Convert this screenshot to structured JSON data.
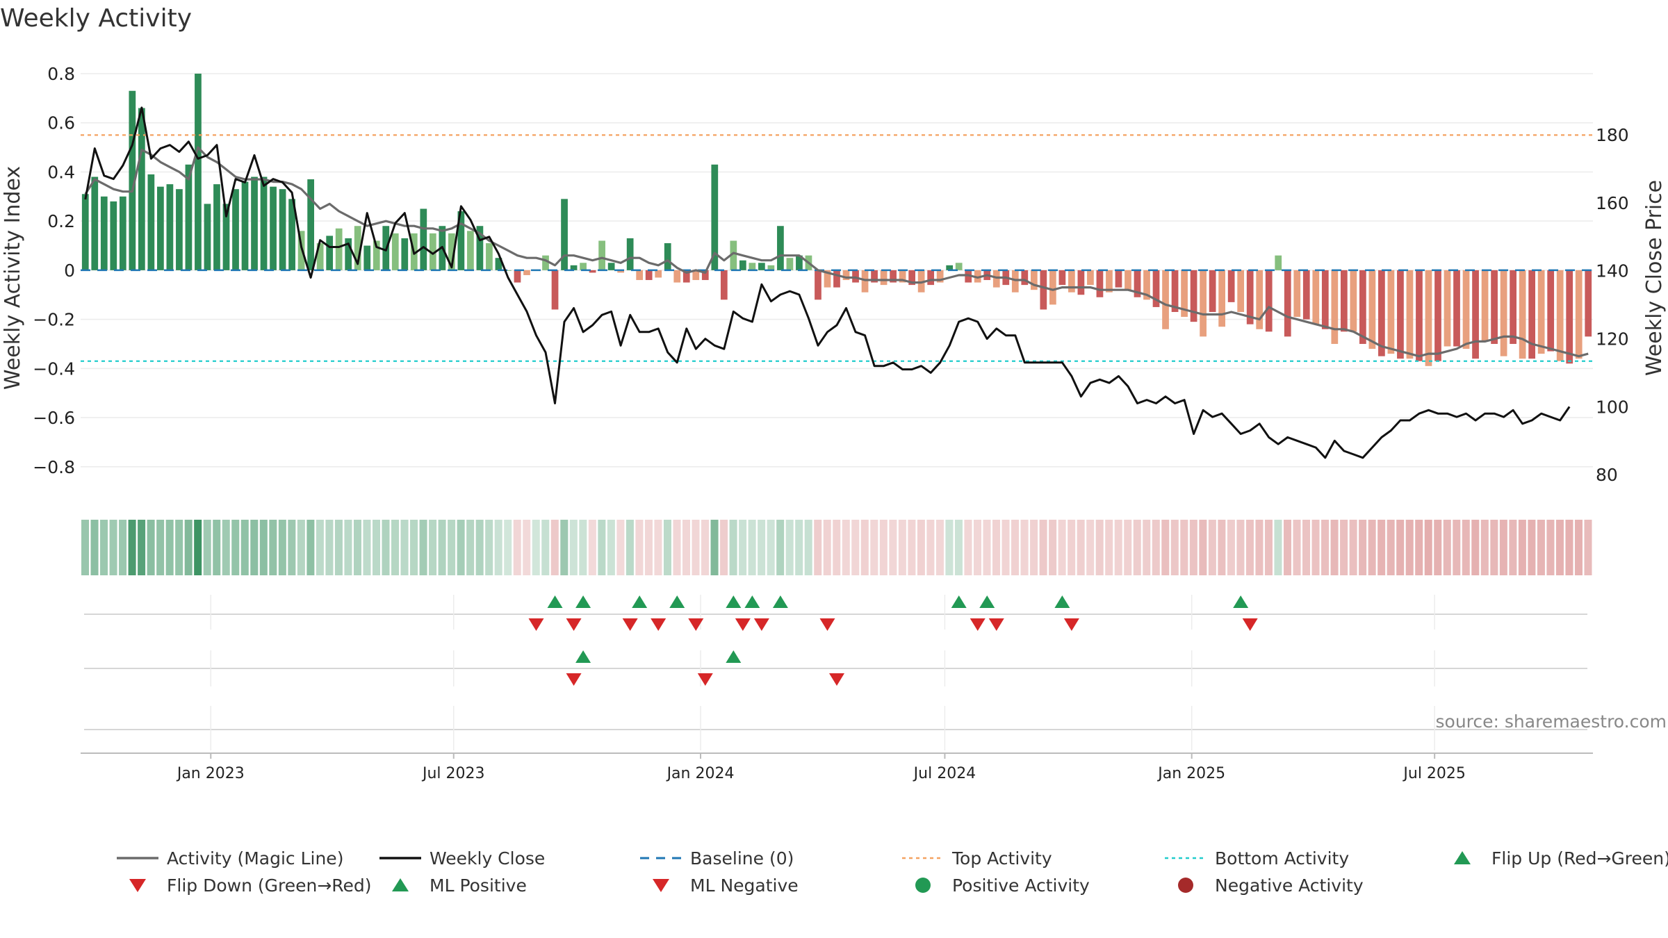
{
  "title": "Weekly Activity",
  "source": "source: sharemaestro.com",
  "colors": {
    "strong_green": "#2e8b57",
    "light_green": "#86bf7e",
    "strong_red": "#c85a5a",
    "light_red": "#e8a07e",
    "magic_line": "#6b6b6b",
    "close_line": "#111111",
    "baseline": "#1f77b4",
    "top_line": "#f4a261",
    "bottom_line": "#22cccc",
    "marker_green": "#229954",
    "marker_red": "#d62728",
    "dot_red": "#a52a2a"
  },
  "chart_data": {
    "type": "bar+line",
    "title": "Weekly Activity",
    "ylabel_left": "Weekly Activity Index",
    "ylabel_right": "Weekly Close Price",
    "ylim_left": [
      -0.86,
      0.8
    ],
    "yticks_left": [
      {
        "v": 0.8,
        "label": "0.8"
      },
      {
        "v": 0.6,
        "label": "0.6"
      },
      {
        "v": 0.4,
        "label": "0.4"
      },
      {
        "v": 0.2,
        "label": "0.2"
      },
      {
        "v": 0,
        "label": "0"
      },
      {
        "v": -0.2,
        "label": "−0.2"
      },
      {
        "v": -0.4,
        "label": "−0.4"
      },
      {
        "v": -0.6,
        "label": "−0.6"
      },
      {
        "v": -0.8,
        "label": "−0.8"
      }
    ],
    "ylim_right": [
      78,
      198
    ],
    "yticks_right": [
      {
        "v": 180,
        "label": "180"
      },
      {
        "v": 160,
        "label": "160"
      },
      {
        "v": 140,
        "label": "140"
      },
      {
        "v": 120,
        "label": "120"
      },
      {
        "v": 100,
        "label": "100"
      },
      {
        "v": 80,
        "label": "80"
      }
    ],
    "x_start": "2022-09-26",
    "x_end": "2025-10-27",
    "xticks": [
      {
        "date": "2023-01-01",
        "label": "Jan 2023"
      },
      {
        "date": "2023-07-01",
        "label": "Jul 2023"
      },
      {
        "date": "2024-01-01",
        "label": "Jan 2024"
      },
      {
        "date": "2024-07-01",
        "label": "Jul 2024"
      },
      {
        "date": "2025-01-01",
        "label": "Jan 2025"
      },
      {
        "date": "2025-07-01",
        "label": "Jul 2025"
      }
    ],
    "top_activity": 0.55,
    "bottom_activity": -0.37,
    "baseline": 0,
    "weekly_activity": [
      0.31,
      0.38,
      0.3,
      0.28,
      0.3,
      0.73,
      0.66,
      0.39,
      0.34,
      0.35,
      0.33,
      0.43,
      0.8,
      0.27,
      0.35,
      0.27,
      0.33,
      0.36,
      0.38,
      0.38,
      0.34,
      0.33,
      0.29,
      0.16,
      0.37,
      0.11,
      0.14,
      0.17,
      0.13,
      0.18,
      0.1,
      0.12,
      0.18,
      0.15,
      0.13,
      0.15,
      0.25,
      0.15,
      0.18,
      0.15,
      0.24,
      0.16,
      0.18,
      0.11,
      0.05,
      0,
      -0.05,
      -0.02,
      0,
      0.06,
      -0.16,
      0.29,
      0.02,
      0.03,
      -0.01,
      0.12,
      0.03,
      -0.01,
      0.13,
      -0.04,
      -0.04,
      -0.03,
      0.11,
      -0.05,
      -0.05,
      -0.04,
      -0.04,
      0.43,
      -0.12,
      0.12,
      0.04,
      0.03,
      0.03,
      0.02,
      0.18,
      0.05,
      0.06,
      0.06,
      -0.12,
      -0.07,
      -0.07,
      -0.04,
      -0.05,
      -0.09,
      -0.05,
      -0.06,
      -0.05,
      -0.05,
      -0.06,
      -0.09,
      -0.06,
      -0.05,
      0.02,
      0.03,
      -0.05,
      -0.05,
      -0.04,
      -0.07,
      -0.06,
      -0.09,
      -0.06,
      -0.08,
      -0.16,
      -0.14,
      -0.06,
      -0.09,
      -0.1,
      -0.06,
      -0.11,
      -0.09,
      -0.07,
      -0.08,
      -0.11,
      -0.12,
      -0.15,
      -0.24,
      -0.17,
      -0.19,
      -0.21,
      -0.27,
      -0.17,
      -0.23,
      -0.13,
      -0.17,
      -0.22,
      -0.24,
      -0.25,
      0.06,
      -0.27,
      -0.19,
      -0.2,
      -0.22,
      -0.24,
      -0.3,
      -0.25,
      -0.25,
      -0.3,
      -0.32,
      -0.35,
      -0.34,
      -0.36,
      -0.36,
      -0.37,
      -0.39,
      -0.37,
      -0.31,
      -0.31,
      -0.32,
      -0.36,
      -0.29,
      -0.3,
      -0.35,
      -0.3,
      -0.36,
      -0.36,
      -0.34,
      -0.33,
      -0.37,
      -0.38,
      -0.36,
      -0.27
    ],
    "magic_line": [
      0.31,
      0.37,
      0.35,
      0.33,
      0.32,
      0.32,
      0.49,
      0.47,
      0.44,
      0.42,
      0.4,
      0.37,
      0.5,
      0.46,
      0.44,
      0.41,
      0.38,
      0.37,
      0.37,
      0.37,
      0.36,
      0.36,
      0.35,
      0.33,
      0.29,
      0.25,
      0.27,
      0.24,
      0.22,
      0.2,
      0.18,
      0.19,
      0.2,
      0.19,
      0.18,
      0.18,
      0.17,
      0.17,
      0.16,
      0.17,
      0.19,
      0.17,
      0.15,
      0.12,
      0.1,
      0.08,
      0.06,
      0.05,
      0.05,
      0.04,
      0.02,
      0.06,
      0.06,
      0.05,
      0.04,
      0.05,
      0.04,
      0.03,
      0.05,
      0.05,
      0.03,
      0.02,
      0.04,
      0.01,
      -0.01,
      0,
      -0.01,
      0.07,
      0.04,
      0.07,
      0.06,
      0.05,
      0.04,
      0.04,
      0.06,
      0.06,
      0.06,
      0.03,
      0,
      -0.01,
      -0.02,
      -0.03,
      -0.03,
      -0.04,
      -0.04,
      -0.04,
      -0.04,
      -0.04,
      -0.05,
      -0.05,
      -0.04,
      -0.04,
      -0.03,
      -0.02,
      -0.02,
      -0.03,
      -0.02,
      -0.03,
      -0.03,
      -0.04,
      -0.04,
      -0.06,
      -0.07,
      -0.08,
      -0.07,
      -0.07,
      -0.07,
      -0.07,
      -0.08,
      -0.08,
      -0.08,
      -0.08,
      -0.09,
      -0.1,
      -0.12,
      -0.14,
      -0.15,
      -0.16,
      -0.17,
      -0.18,
      -0.18,
      -0.18,
      -0.17,
      -0.18,
      -0.19,
      -0.2,
      -0.15,
      -0.17,
      -0.19,
      -0.2,
      -0.21,
      -0.22,
      -0.23,
      -0.24,
      -0.24,
      -0.25,
      -0.27,
      -0.29,
      -0.31,
      -0.32,
      -0.33,
      -0.34,
      -0.35,
      -0.34,
      -0.34,
      -0.33,
      -0.32,
      -0.3,
      -0.29,
      -0.29,
      -0.28,
      -0.27,
      -0.27,
      -0.28,
      -0.3,
      -0.31,
      -0.32,
      -0.33,
      -0.34,
      -0.35,
      -0.34
    ],
    "weekly_close": [
      161,
      176,
      168,
      167,
      171,
      177,
      188,
      173,
      176,
      177,
      175,
      178,
      173,
      174,
      177,
      156,
      167,
      166,
      174,
      165,
      167,
      166,
      163,
      147,
      138,
      149,
      147,
      147,
      148,
      142,
      157,
      147,
      146,
      154,
      157,
      145,
      147,
      145,
      147,
      141,
      159,
      155,
      149,
      150,
      145,
      138,
      133,
      128,
      121,
      116,
      101,
      125,
      129,
      122,
      124,
      127,
      128,
      118,
      127,
      122,
      122,
      123,
      116,
      113,
      123,
      117,
      120,
      118,
      117,
      128,
      126,
      125,
      136,
      131,
      133,
      134,
      133,
      126,
      118,
      122,
      124,
      129,
      122,
      121,
      112,
      112,
      113,
      111,
      111,
      112,
      110,
      113,
      118,
      125,
      126,
      125,
      120,
      123,
      121,
      121,
      113,
      113,
      113,
      113,
      113,
      109,
      103,
      107,
      108,
      107,
      109,
      106,
      101,
      102,
      101,
      103,
      101,
      102,
      92,
      99,
      97,
      98,
      95,
      92,
      93,
      95,
      91,
      89,
      91,
      90,
      89,
      88,
      85,
      90,
      87,
      86,
      85,
      88,
      91,
      93,
      96,
      96,
      98,
      99,
      98,
      98,
      97,
      98,
      96,
      98,
      98,
      97,
      99,
      95,
      96,
      98,
      97,
      96,
      100
    ],
    "strip_shading_note": "strip cell color follows weekly_activity sign and magnitude",
    "flip_up_weeks": [
      50,
      53,
      59,
      63,
      69,
      71,
      74,
      93,
      96,
      104,
      123
    ],
    "flip_down_weeks": [
      48,
      52,
      58,
      61,
      65,
      70,
      72,
      79,
      95,
      97,
      105,
      124
    ],
    "ml_positive_weeks": [
      53,
      69
    ],
    "ml_negative_weeks": [
      52,
      66,
      80
    ]
  },
  "legend": [
    {
      "name": "legend-magic-line",
      "label": "Activity (Magic Line)",
      "kind": "line",
      "color": "magic_line"
    },
    {
      "name": "legend-weekly-close",
      "label": "Weekly Close",
      "kind": "line",
      "color": "close_line"
    },
    {
      "name": "legend-baseline",
      "label": "Baseline (0)",
      "kind": "dash",
      "color": "baseline"
    },
    {
      "name": "legend-top-activity",
      "label": "Top Activity",
      "kind": "dot",
      "color": "top_line"
    },
    {
      "name": "legend-bottom-activity",
      "label": "Bottom Activity",
      "kind": "dot",
      "color": "bottom_line"
    },
    {
      "name": "legend-flip-up",
      "label": "Flip Up (Red→Green)",
      "kind": "tri-up",
      "color": "marker_green"
    },
    {
      "name": "legend-flip-down",
      "label": "Flip Down (Green→Red)",
      "kind": "tri-down",
      "color": "marker_red"
    },
    {
      "name": "legend-ml-positive",
      "label": "ML Positive",
      "kind": "tri-up",
      "color": "marker_green"
    },
    {
      "name": "legend-ml-negative",
      "label": "ML Negative",
      "kind": "tri-down",
      "color": "marker_red"
    },
    {
      "name": "legend-positive-activity",
      "label": "Positive Activity",
      "kind": "circle",
      "color": "marker_green"
    },
    {
      "name": "legend-negative-activity",
      "label": "Negative Activity",
      "kind": "circle",
      "color": "dot_red"
    }
  ]
}
